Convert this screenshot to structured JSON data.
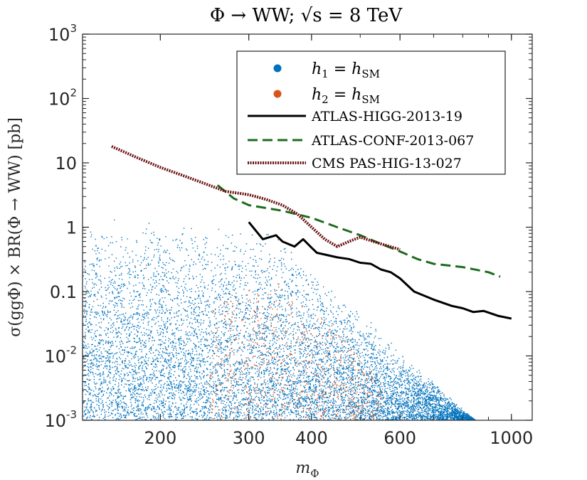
{
  "chart_data": {
    "type": "scatter",
    "title": "Φ → WW; √s = 8 TeV",
    "xlabel": "m_Φ",
    "ylabel": "σ(ggΦ) × BR(Φ → WW) [pb]",
    "xscale": "log",
    "yscale": "log",
    "xlim": [
      140,
      1100
    ],
    "ylim": [
      0.001,
      1000
    ],
    "x_ticks": [
      200,
      300,
      400,
      600,
      1000
    ],
    "x_tick_labels": [
      "200",
      "300",
      "400",
      "600",
      "1000"
    ],
    "y_ticks": [
      0.001,
      0.01,
      0.1,
      1,
      10,
      100,
      1000
    ],
    "y_tick_labels": [
      {
        "base": "10",
        "exp": "-3"
      },
      {
        "base": "10",
        "exp": "-2"
      },
      {
        "base": "0.1",
        "exp": ""
      },
      {
        "base": "1",
        "exp": ""
      },
      {
        "base": "10",
        "exp": ""
      },
      {
        "base": "10",
        "exp": "2"
      },
      {
        "base": "10",
        "exp": "3"
      }
    ],
    "legend_position": "top-right",
    "series": [
      {
        "name": "h1 = hSM",
        "label_main": "h",
        "label_sub": "1",
        "label_rhs": " = h",
        "label_rhs_sub": "SM",
        "kind": "scatter",
        "color": "#0072BD",
        "envelope_upper": [
          [
            140,
            1.6
          ],
          [
            200,
            1.3
          ],
          [
            250,
            1.1
          ],
          [
            300,
            0.9
          ],
          [
            350,
            0.75
          ],
          [
            400,
            0.2
          ],
          [
            500,
            0.05
          ],
          [
            600,
            0.012
          ],
          [
            700,
            0.004
          ],
          [
            800,
            0.0015
          ],
          [
            850,
            0.001
          ]
        ],
        "envelope_lower": [
          [
            140,
            0.001
          ],
          [
            850,
            0.001
          ]
        ]
      },
      {
        "name": "h2 = hSM",
        "label_main": "h",
        "label_sub": "2",
        "label_rhs": " = h",
        "label_rhs_sub": "SM",
        "kind": "scatter",
        "color": "#D95319",
        "envelope_upper": [
          [
            250,
            0.08
          ],
          [
            300,
            0.12
          ],
          [
            350,
            0.15
          ],
          [
            400,
            0.06
          ],
          [
            450,
            0.03
          ],
          [
            500,
            0.01
          ],
          [
            550,
            0.004
          ]
        ],
        "envelope_lower": [
          [
            250,
            0.001
          ],
          [
            550,
            0.001
          ]
        ]
      },
      {
        "name": "ATLAS-HIGG-2013-19",
        "kind": "line",
        "style": "solid",
        "color": "#000000",
        "x": [
          300,
          320,
          340,
          350,
          370,
          385,
          400,
          410,
          450,
          475,
          500,
          525,
          550,
          575,
          600,
          640,
          700,
          760,
          800,
          840,
          880,
          940,
          1000
        ],
        "y": [
          1.2,
          0.65,
          0.75,
          0.6,
          0.5,
          0.65,
          0.48,
          0.4,
          0.34,
          0.32,
          0.28,
          0.27,
          0.22,
          0.2,
          0.16,
          0.1,
          0.075,
          0.06,
          0.055,
          0.048,
          0.05,
          0.042,
          0.038
        ]
      },
      {
        "name": "ATLAS-CONF-2013-067",
        "kind": "line",
        "style": "dashed",
        "color": "#1E6B1E",
        "x": [
          260,
          280,
          300,
          350,
          400,
          450,
          500,
          550,
          600,
          650,
          700,
          800,
          900,
          950
        ],
        "y": [
          4.5,
          2.8,
          2.2,
          1.8,
          1.4,
          1.0,
          0.75,
          0.55,
          0.42,
          0.32,
          0.27,
          0.24,
          0.2,
          0.17
        ]
      },
      {
        "name": "CMS PAS-HIG-13-027",
        "kind": "line",
        "style": "dotted",
        "color": "#6B0F0F",
        "x": [
          160,
          180,
          200,
          220,
          250,
          270,
          300,
          325,
          350,
          375,
          400,
          425,
          450,
          475,
          500,
          550,
          600
        ],
        "y": [
          18,
          12,
          8.5,
          6.5,
          4.5,
          3.6,
          3.2,
          2.7,
          2.2,
          1.6,
          1.0,
          0.65,
          0.5,
          0.6,
          0.7,
          0.55,
          0.45
        ]
      }
    ]
  }
}
